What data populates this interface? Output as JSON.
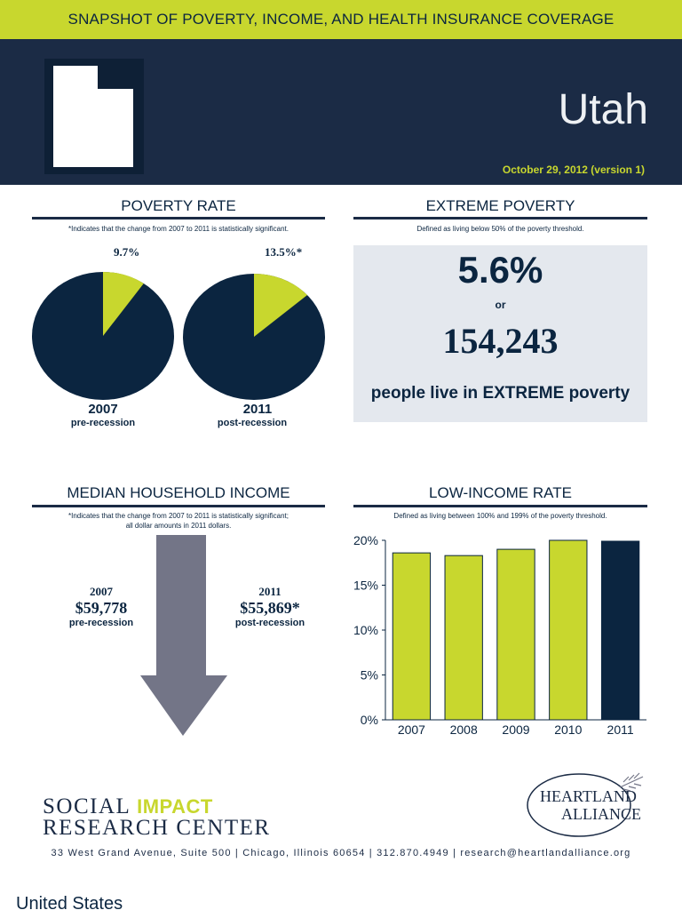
{
  "header": {
    "banner": "SNAPSHOT OF POVERTY, INCOME, AND HEALTH INSURANCE COVERAGE",
    "state": "Utah",
    "date": "October 29, 2012 (version 1)"
  },
  "colors": {
    "lime": "#c8d72e",
    "navy": "#1b2b45",
    "dark_navy": "#0b2540",
    "arrow_gray": "#737587",
    "panel_gray": "#e4e8ee"
  },
  "poverty_rate": {
    "title": "POVERTY RATE",
    "note": "*Indicates that the change from 2007 to 2011 is statistically significant.",
    "pies": [
      {
        "label": "9.7%",
        "value": 9.7,
        "year": "2007",
        "sub": "pre-recession"
      },
      {
        "label": "13.5%*",
        "value": 13.5,
        "year": "2011",
        "sub": "post-recession"
      }
    ]
  },
  "extreme_poverty": {
    "title": "EXTREME POVERTY",
    "note": "Defined as living below 50% of the poverty threshold.",
    "percent": "5.6%",
    "or": "or",
    "count": "154,243",
    "statement": "people live in EXTREME poverty"
  },
  "median_income": {
    "title": "MEDIAN HOUSEHOLD INCOME",
    "note_line1": "*Indicates that the change from 2007 to 2011 is statistically significant;",
    "note_line2": "all dollar amounts in 2011 dollars.",
    "left": {
      "year": "2007",
      "value": "$59,778",
      "sub": "pre-recession"
    },
    "right": {
      "year": "2011",
      "value": "$55,869*",
      "sub": "post-recession"
    }
  },
  "low_income": {
    "title": "LOW-INCOME RATE",
    "note": "Defined as living between 100% and 199% of the poverty threshold."
  },
  "chart_data": {
    "type": "bar",
    "categories": [
      "2007",
      "2008",
      "2009",
      "2010",
      "2011"
    ],
    "values": [
      18.6,
      18.3,
      19.0,
      20.0,
      19.9
    ],
    "ylim": [
      0,
      20
    ],
    "yticks": [
      "0%",
      "5%",
      "10%",
      "15%",
      "20%"
    ],
    "bar_colors": [
      "#c8d72e",
      "#c8d72e",
      "#c8d72e",
      "#c8d72e",
      "#0b2540"
    ],
    "title": "",
    "xlabel": "",
    "ylabel": ""
  },
  "footer": {
    "sirc_word1": "SOCIAL",
    "sirc_word2": "IMPACT",
    "sirc_line2": "RESEARCH CENTER",
    "ha_line1": "HEARTLAND",
    "ha_line2": "ALLIANCE",
    "address": "33 West Grand Avenue, Suite 500 | Chicago, Illinois 60654 | 312.870.4949 | research@heartlandalliance.org"
  },
  "next_page": "United States"
}
